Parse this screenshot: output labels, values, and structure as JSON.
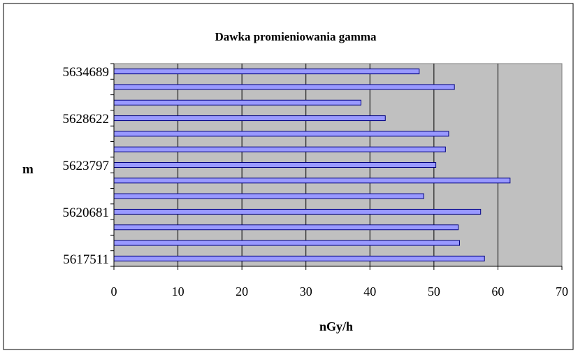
{
  "chart_data": {
    "type": "bar",
    "orientation": "horizontal",
    "title": "Dawka promieniowania gamma",
    "xlabel": "nGy/h",
    "ylabel": "m",
    "xlim": [
      0,
      70
    ],
    "x_ticks": [
      "0",
      "10",
      "20",
      "30",
      "40",
      "50",
      "60",
      "70"
    ],
    "y_tick_labels": [
      "5634689",
      "5628622",
      "5623797",
      "5620681",
      "5617511"
    ],
    "values": [
      47.7,
      53.2,
      38.6,
      42.4,
      52.3,
      51.8,
      50.3,
      61.9,
      48.4,
      57.3,
      53.8,
      54.0,
      57.9
    ],
    "grid": "vertical major gridlines",
    "plot_background": "#c0c0c0",
    "bar_color": "#9999ff",
    "bar_edge_color": "#000080"
  }
}
